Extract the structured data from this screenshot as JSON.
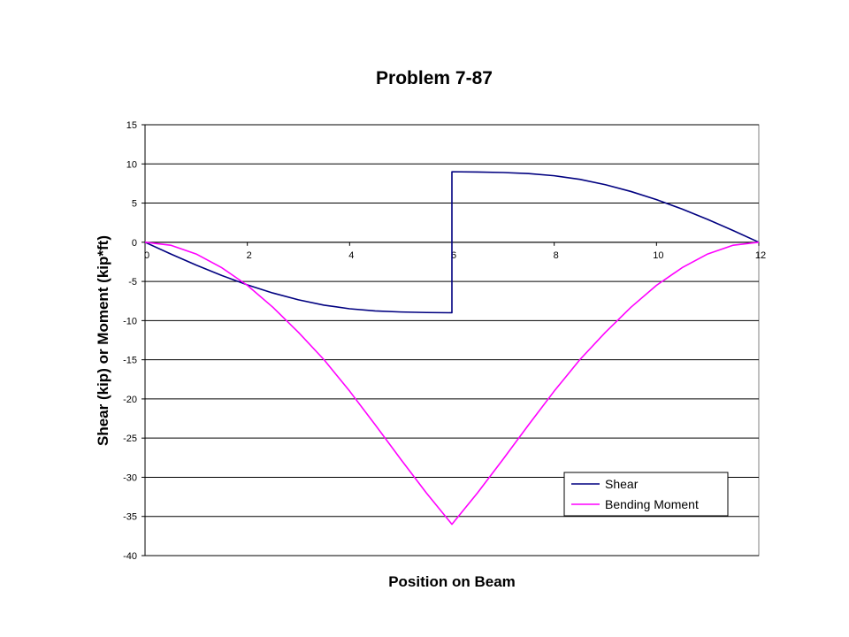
{
  "chart_data": {
    "type": "line",
    "title": "Problem 7-87",
    "xlabel": "Position on Beam",
    "ylabel": "Shear (kip) or Moment (kip*ft)",
    "xlim": [
      0,
      12
    ],
    "ylim": [
      -40,
      15
    ],
    "x_ticks": [
      0,
      2,
      4,
      6,
      8,
      10,
      12
    ],
    "y_ticks": [
      15,
      10,
      5,
      0,
      -5,
      -10,
      -15,
      -20,
      -25,
      -30,
      -35,
      -40
    ],
    "grid": "horizontal",
    "legend_position": "bottom-right",
    "series": [
      {
        "name": "Shear",
        "color": "#000080",
        "points": [
          [
            0,
            0
          ],
          [
            0.5,
            -1.49
          ],
          [
            1,
            -2.92
          ],
          [
            1.5,
            -4.24
          ],
          [
            2,
            -5.44
          ],
          [
            2.5,
            -6.48
          ],
          [
            3,
            -7.35
          ],
          [
            3.5,
            -8.03
          ],
          [
            4,
            -8.49
          ],
          [
            4.5,
            -8.77
          ],
          [
            5,
            -8.9
          ],
          [
            5.5,
            -8.97
          ],
          [
            6,
            -9
          ],
          [
            6,
            9
          ],
          [
            6.5,
            8.97
          ],
          [
            7,
            8.9
          ],
          [
            7.5,
            8.77
          ],
          [
            8,
            8.49
          ],
          [
            8.5,
            8.03
          ],
          [
            9,
            7.35
          ],
          [
            9.5,
            6.48
          ],
          [
            10,
            5.44
          ],
          [
            10.5,
            4.24
          ],
          [
            11,
            2.92
          ],
          [
            11.5,
            1.49
          ],
          [
            12,
            0
          ]
        ]
      },
      {
        "name": "Bending Moment",
        "color": "#ff00ff",
        "points": [
          [
            0,
            0
          ],
          [
            0.5,
            -0.38
          ],
          [
            1,
            -1.5
          ],
          [
            1.5,
            -3.25
          ],
          [
            2,
            -5.5
          ],
          [
            2.5,
            -8.3
          ],
          [
            3,
            -11.5
          ],
          [
            3.5,
            -15
          ],
          [
            4,
            -19
          ],
          [
            4.5,
            -23.3
          ],
          [
            5,
            -27.7
          ],
          [
            5.5,
            -32
          ],
          [
            6,
            -36
          ],
          [
            6.5,
            -32
          ],
          [
            7,
            -27.7
          ],
          [
            7.5,
            -23.3
          ],
          [
            8,
            -19
          ],
          [
            8.5,
            -15
          ],
          [
            9,
            -11.5
          ],
          [
            9.5,
            -8.3
          ],
          [
            10,
            -5.5
          ],
          [
            10.5,
            -3.25
          ],
          [
            11,
            -1.5
          ],
          [
            11.5,
            -0.38
          ],
          [
            12,
            0
          ]
        ]
      }
    ]
  }
}
